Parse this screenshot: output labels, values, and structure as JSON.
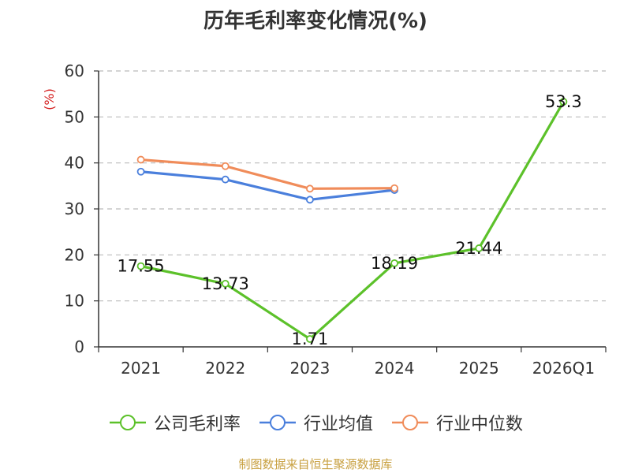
{
  "chart_data": {
    "type": "line",
    "title": "历年毛利率变化情况(%)",
    "ylabel": "(%)",
    "xlabel": "",
    "categories": [
      "2021",
      "2022",
      "2023",
      "2024",
      "2025",
      "2026Q1"
    ],
    "ylim": [
      0,
      60
    ],
    "yticks": [
      0,
      10,
      20,
      30,
      40,
      50,
      60
    ],
    "grid": true,
    "legend_position": "bottom",
    "series": [
      {
        "name": "公司毛利率",
        "color": "#5cc12a",
        "values": [
          17.55,
          13.73,
          1.71,
          18.19,
          21.44,
          53.3
        ],
        "labels": [
          "17.55",
          "13.73",
          "1.71",
          "18.19",
          "21.44",
          "53.3"
        ]
      },
      {
        "name": "行业均值",
        "color": "#4a7fdc",
        "values": [
          38.1,
          36.4,
          32.0,
          34.1,
          null,
          null
        ]
      },
      {
        "name": "行业中位数",
        "color": "#f08c5a",
        "values": [
          40.7,
          39.3,
          34.4,
          34.5,
          null,
          null
        ]
      }
    ]
  },
  "source": "制图数据来自恒生聚源数据库"
}
